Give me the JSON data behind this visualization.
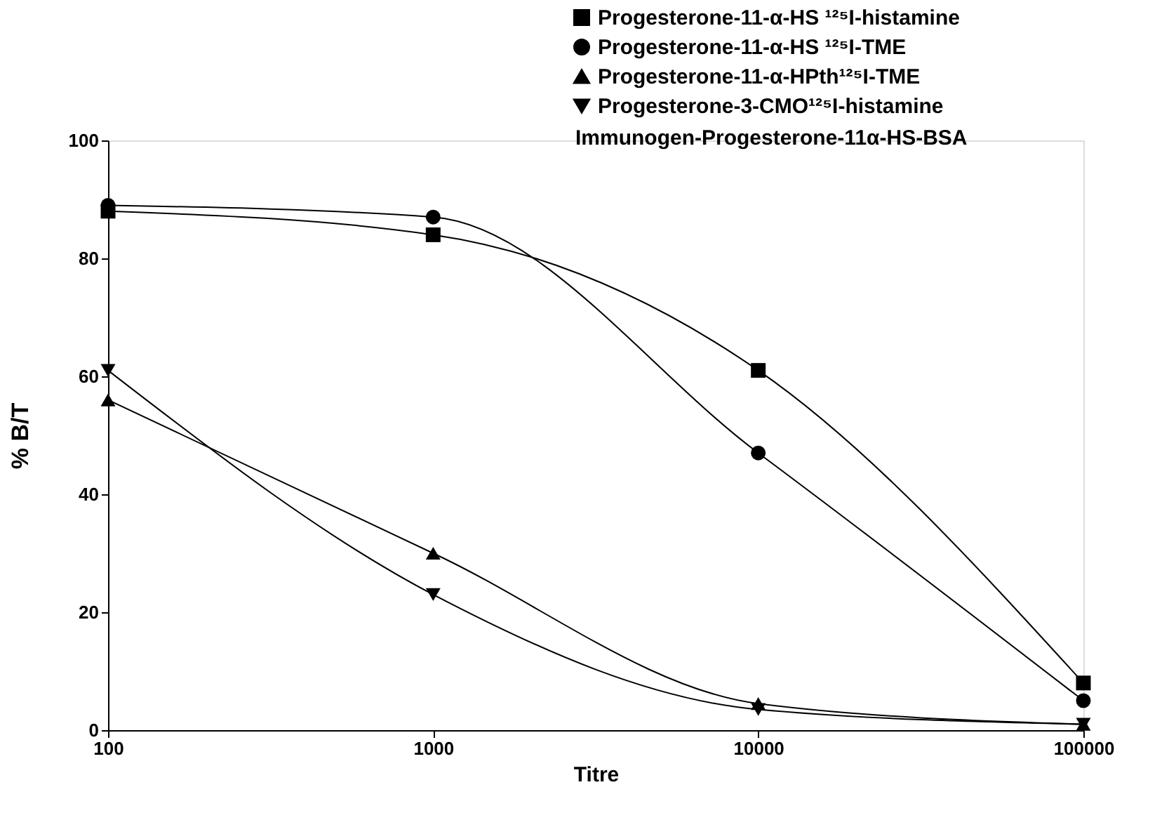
{
  "chart_data": {
    "type": "line",
    "xlabel": "Titre",
    "ylabel": "% B/T",
    "x": [
      100,
      1000,
      10000,
      100000
    ],
    "series": [
      {
        "name": "Progesterone-11-α-HS ¹²⁵I-histamine",
        "color": "#000000",
        "marker": "square",
        "values": [
          88,
          84,
          61,
          8
        ]
      },
      {
        "name": "Progesterone-11-α-HS ¹²⁵I-TME",
        "color": "#000000",
        "marker": "circle",
        "values": [
          89,
          87,
          47,
          5
        ]
      },
      {
        "name": "Progesterone-11-α-HPth¹²⁵I-TME",
        "color": "#000000",
        "marker": "triangle",
        "values": [
          56,
          30,
          4.5,
          1
        ]
      },
      {
        "name": "Progesterone-3-CMO¹²⁵I-histamine",
        "color": "#000000",
        "marker": "triangle-down",
        "values": [
          61,
          23,
          3.5,
          1
        ]
      }
    ],
    "annotations": [
      "Immunogen-Progesterone-11α-HS-BSA"
    ],
    "log": "x",
    "xlim": [
      100,
      100000
    ],
    "xticks": [
      100,
      1000,
      10000,
      100000
    ],
    "ylim": [
      0,
      100
    ],
    "yticks": [
      0,
      20,
      40,
      60,
      80,
      100
    ],
    "grid": false,
    "legend": "top right",
    "line_style": "solid"
  }
}
